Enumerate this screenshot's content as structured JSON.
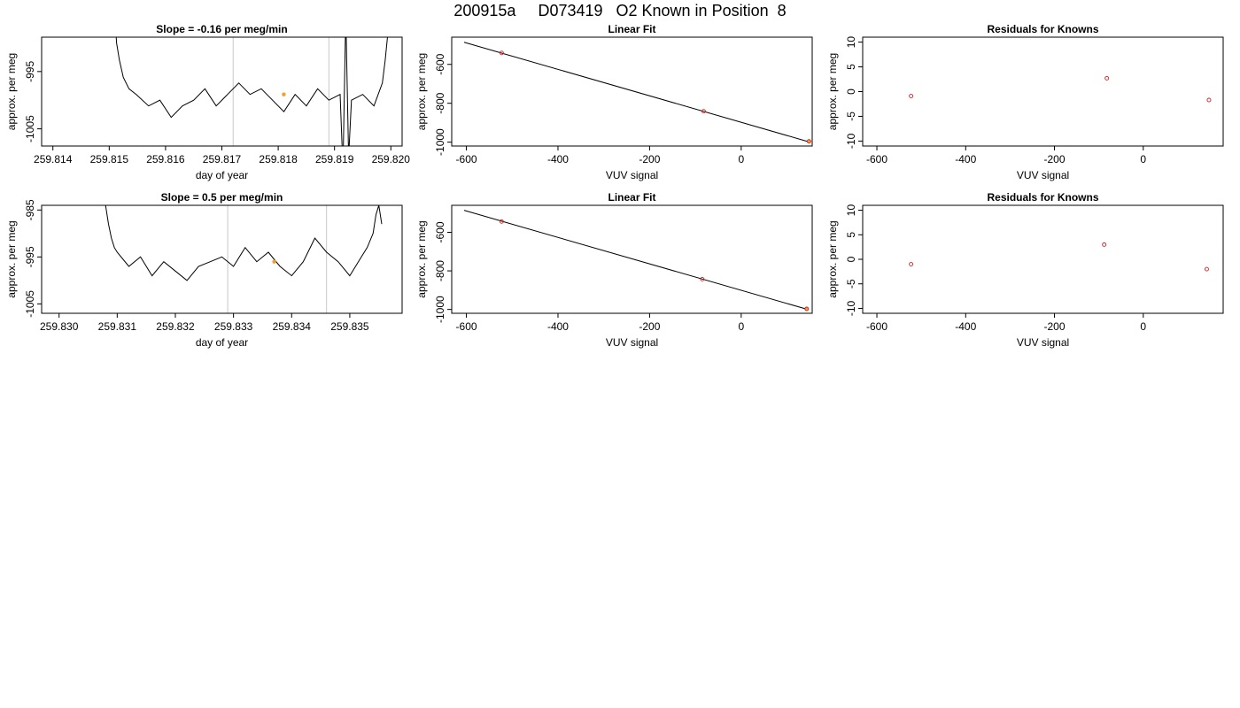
{
  "figure": {
    "title": "200915a     D073419   O2 Known in Position  8"
  },
  "chart_data": [
    {
      "type": "line",
      "title": "Slope =  -0.16  per meg/min",
      "xlabel": "day of year",
      "ylabel": "approx. per meg",
      "xlim": [
        259.8138,
        259.8202
      ],
      "ylim": [
        -1008,
        -989
      ],
      "xticks": [
        "259.814",
        "259.815",
        "259.816",
        "259.817",
        "259.818",
        "259.819",
        "259.820"
      ],
      "xtick_values": [
        259.814,
        259.815,
        259.816,
        259.817,
        259.818,
        259.819,
        259.82
      ],
      "yticks": [
        "-1005",
        "-995"
      ],
      "ytick_values": [
        -1005,
        -995
      ],
      "vlines": [
        259.8172,
        259.8189
      ],
      "grid": false,
      "series": [
        {
          "x": [
            259.8151,
            259.81513,
            259.81518,
            259.81525,
            259.81535,
            259.81548,
            259.8157,
            259.8159,
            259.8161,
            259.8163,
            259.8165,
            259.8167,
            259.8169,
            259.8171,
            259.8173,
            259.8175,
            259.8177,
            259.8179,
            259.8181,
            259.8183,
            259.8185,
            259.8187,
            259.8189,
            259.8191,
            259.81915,
            259.8192,
            259.81925,
            259.8193,
            259.8195,
            259.8197,
            259.81985,
            259.8199,
            259.81995
          ],
          "y": [
            -985,
            -990,
            -993,
            -996,
            -998,
            -999,
            -1001,
            -1000,
            -1003,
            -1001,
            -1000,
            -998,
            -1001,
            -999,
            -997,
            -999,
            -998,
            -1000,
            -1002,
            -999,
            -1001,
            -998,
            -1000,
            -999,
            -1012,
            -985,
            -1010,
            -1000,
            -999,
            -1001,
            -997,
            -993,
            -988
          ]
        }
      ],
      "highlight_points": [
        {
          "x": 259.8181,
          "y": -999
        }
      ]
    },
    {
      "type": "scatter",
      "title": "Linear Fit",
      "xlabel": "VUV signal",
      "ylabel": "approx. per meg",
      "xlim": [
        -632,
        155
      ],
      "ylim": [
        -1020,
        -460
      ],
      "xticks": [
        "-600",
        "-400",
        "-200",
        "0"
      ],
      "xtick_values": [
        -600,
        -400,
        -200,
        0
      ],
      "yticks": [
        "-1000",
        "-800",
        "-600"
      ],
      "ytick_values": [
        -1000,
        -800,
        -600
      ],
      "fit_line": {
        "x": [
          -605,
          150
        ],
        "y": [
          -486,
          -1000
        ]
      },
      "points": {
        "x": [
          -523,
          -82,
          148
        ],
        "y": [
          -541,
          -841,
          -996
        ]
      },
      "highlight_points": [
        {
          "x": 148,
          "y": -996
        }
      ]
    },
    {
      "type": "scatter",
      "title": "Residuals for Knowns",
      "xlabel": "VUV signal",
      "ylabel": "approx. per meg",
      "xlim": [
        -632,
        180
      ],
      "ylim": [
        -11,
        11
      ],
      "xticks": [
        "-600",
        "-400",
        "-200",
        "0"
      ],
      "xtick_values": [
        -600,
        -400,
        -200,
        0
      ],
      "yticks": [
        "-10",
        "-5",
        "0",
        "5",
        "10"
      ],
      "ytick_values": [
        -10,
        -5,
        0,
        5,
        10
      ],
      "points": {
        "x": [
          -523,
          -82,
          148
        ],
        "y": [
          -0.9,
          2.7,
          -1.7
        ]
      }
    },
    {
      "type": "line",
      "title": "Slope =  0.5  per meg/min",
      "xlabel": "day of year",
      "ylabel": "approx. per meg",
      "xlim": [
        259.8297,
        259.8359
      ],
      "ylim": [
        -1007,
        -984
      ],
      "xticks": [
        "259.830",
        "259.831",
        "259.832",
        "259.833",
        "259.834",
        "259.835"
      ],
      "xtick_values": [
        259.83,
        259.831,
        259.832,
        259.833,
        259.834,
        259.835
      ],
      "yticks": [
        "-1005",
        "-995",
        "-985"
      ],
      "ytick_values": [
        -1005,
        -995,
        -985
      ],
      "vlines": [
        259.8329,
        259.8346
      ],
      "grid": false,
      "series": [
        {
          "x": [
            259.8308,
            259.83085,
            259.8309,
            259.83095,
            259.831,
            259.8312,
            259.8314,
            259.8316,
            259.8318,
            259.832,
            259.8322,
            259.8324,
            259.8326,
            259.8328,
            259.833,
            259.8332,
            259.8334,
            259.8336,
            259.8338,
            259.834,
            259.8342,
            259.8344,
            259.8346,
            259.8348,
            259.835,
            259.8352,
            259.8353,
            259.8354,
            259.83545,
            259.8355,
            259.83555
          ],
          "y": [
            -984,
            -988,
            -991,
            -993,
            -994,
            -997,
            -995,
            -999,
            -996,
            -998,
            -1000,
            -997,
            -996,
            -995,
            -997,
            -993,
            -996,
            -994,
            -997,
            -999,
            -996,
            -991,
            -994,
            -996,
            -999,
            -995,
            -993,
            -990,
            -986,
            -984,
            -988
          ]
        }
      ],
      "highlight_points": [
        {
          "x": 259.8337,
          "y": -996
        }
      ]
    },
    {
      "type": "scatter",
      "title": "Linear Fit",
      "xlabel": "VUV signal",
      "ylabel": "approx. per meg",
      "xlim": [
        -632,
        155
      ],
      "ylim": [
        -1020,
        -460
      ],
      "xticks": [
        "-600",
        "-400",
        "-200",
        "0"
      ],
      "xtick_values": [
        -600,
        -400,
        -200,
        0
      ],
      "yticks": [
        "-1000",
        "-800",
        "-600"
      ],
      "ytick_values": [
        -1000,
        -800,
        -600
      ],
      "fit_line": {
        "x": [
          -605,
          145
        ],
        "y": [
          -486,
          -1000
        ]
      },
      "points": {
        "x": [
          -523,
          -85,
          143
        ],
        "y": [
          -544,
          -843,
          -997
        ]
      },
      "highlight_points": [
        {
          "x": 143,
          "y": -997
        }
      ]
    },
    {
      "type": "scatter",
      "title": "Residuals for Knowns",
      "xlabel": "VUV signal",
      "ylabel": "approx. per meg",
      "xlim": [
        -632,
        180
      ],
      "ylim": [
        -11,
        11
      ],
      "xticks": [
        "-600",
        "-400",
        "-200",
        "0"
      ],
      "xtick_values": [
        -600,
        -400,
        -200,
        0
      ],
      "yticks": [
        "-10",
        "-5",
        "0",
        "5",
        "10"
      ],
      "ytick_values": [
        -10,
        -5,
        0,
        5,
        10
      ],
      "points": {
        "x": [
          -523,
          -88,
          143
        ],
        "y": [
          -1.0,
          3.0,
          -2.0
        ]
      }
    }
  ],
  "colors": {
    "axis": "#000000",
    "line": "#000000",
    "fit_line": "#000000",
    "point": "#d62020",
    "highlight": "#f0a030",
    "vline": "#c8c8c8"
  }
}
